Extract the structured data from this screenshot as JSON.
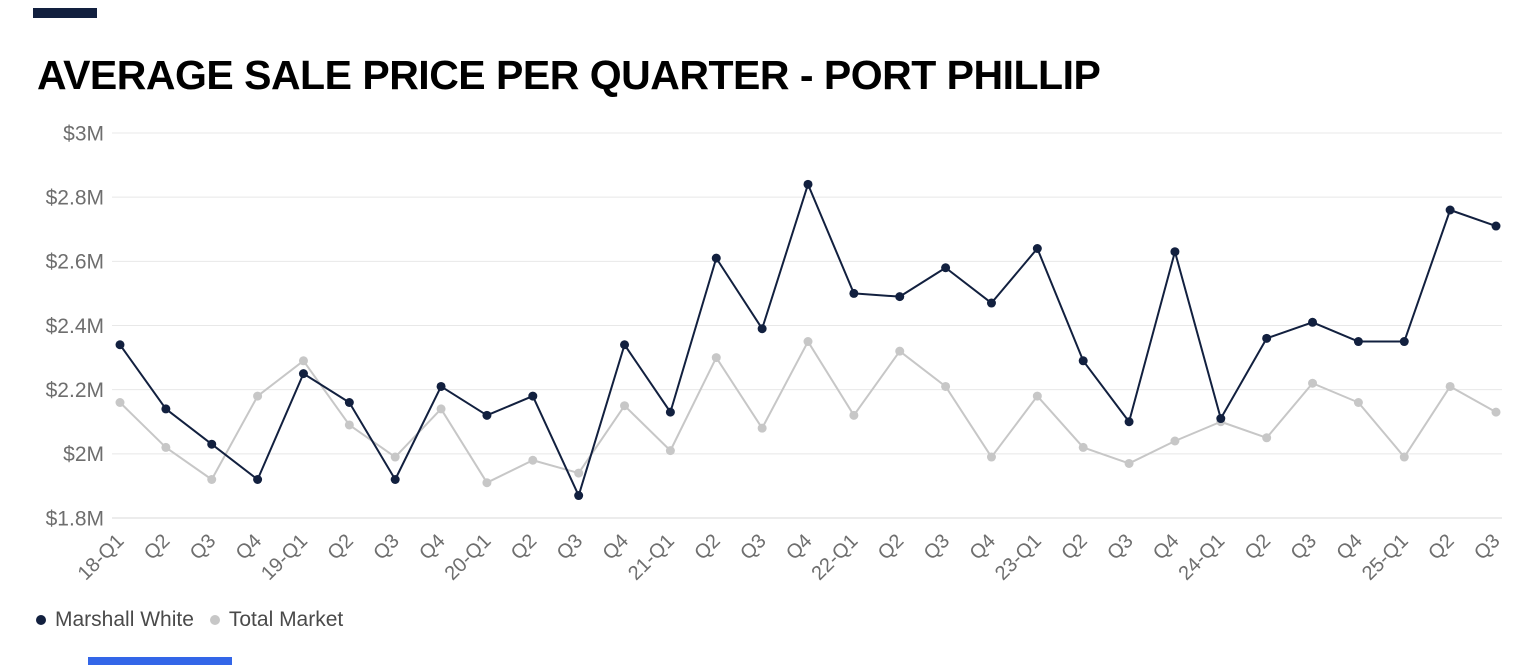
{
  "title": "AVERAGE SALE PRICE PER QUARTER - PORT PHILLIP",
  "legend": {
    "items": [
      {
        "label": "Marshall White",
        "color": "#12203f"
      },
      {
        "label": "Total Market",
        "color": "#c7c7c7"
      }
    ]
  },
  "decorations": {
    "top_bar_color": "#12203f",
    "bottom_bar_color": "#3366e8"
  },
  "chart_data": {
    "type": "line",
    "title": "AVERAGE SALE PRICE PER QUARTER - PORT PHILLIP",
    "xlabel": "",
    "ylabel": "",
    "ylim": [
      1.8,
      3.0
    ],
    "grid": true,
    "legend_position": "bottom-left",
    "yticks": [
      {
        "value": 3.0,
        "label": "$3M"
      },
      {
        "value": 2.8,
        "label": "$2.8M"
      },
      {
        "value": 2.6,
        "label": "$2.6M"
      },
      {
        "value": 2.4,
        "label": "$2.4M"
      },
      {
        "value": 2.2,
        "label": "$2.2M"
      },
      {
        "value": 2.0,
        "label": "$2M"
      },
      {
        "value": 1.8,
        "label": "$1.8M"
      }
    ],
    "categories": [
      "18-Q1",
      "Q2",
      "Q3",
      "Q4",
      "19-Q1",
      "Q2",
      "Q3",
      "Q4",
      "20-Q1",
      "Q2",
      "Q3",
      "Q4",
      "21-Q1",
      "Q2",
      "Q3",
      "Q4",
      "22-Q1",
      "Q2",
      "Q3",
      "Q4",
      "23-Q1",
      "Q2",
      "Q3",
      "Q4",
      "24-Q1",
      "Q2",
      "Q3",
      "Q4",
      "25-Q1",
      "Q2",
      "Q3"
    ],
    "series": [
      {
        "name": "Marshall White",
        "color": "#12203f",
        "values": [
          2.34,
          2.14,
          2.03,
          1.92,
          2.25,
          2.16,
          1.92,
          2.21,
          2.12,
          2.18,
          1.87,
          2.34,
          2.13,
          2.61,
          2.39,
          2.84,
          2.5,
          2.49,
          2.58,
          2.47,
          2.64,
          2.29,
          2.1,
          2.63,
          2.11,
          2.36,
          2.41,
          2.35,
          2.35,
          2.76,
          2.71
        ]
      },
      {
        "name": "Total Market",
        "color": "#c7c7c7",
        "values": [
          2.16,
          2.02,
          1.92,
          2.18,
          2.29,
          2.09,
          1.99,
          2.14,
          1.91,
          1.98,
          1.94,
          2.15,
          2.01,
          2.3,
          2.08,
          2.35,
          2.12,
          2.32,
          2.21,
          1.99,
          2.18,
          2.02,
          1.97,
          2.04,
          2.1,
          2.05,
          2.22,
          2.16,
          1.99,
          2.21,
          2.13
        ]
      }
    ]
  }
}
